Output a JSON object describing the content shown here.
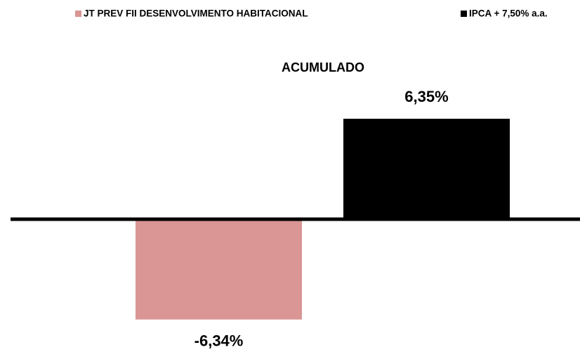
{
  "chart_data": {
    "type": "bar",
    "categories": [
      "ACUMULADO"
    ],
    "series": [
      {
        "name": "JT PREV FII DESENVOLVIMENTO HABITACIONAL",
        "color": "#d99694",
        "values": [
          -6.34
        ],
        "value_labels": [
          "-6,34%"
        ]
      },
      {
        "name": "IPCA + 7,50% a.a.",
        "color": "#000000",
        "values": [
          6.35
        ],
        "value_labels": [
          "6,35%"
        ]
      }
    ],
    "legend": "top"
  }
}
